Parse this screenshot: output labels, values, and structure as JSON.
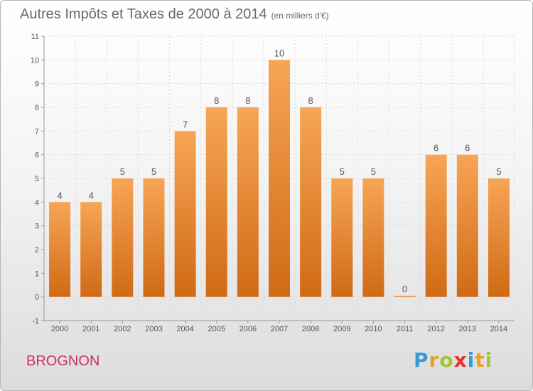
{
  "header": {
    "title": "Autres Impôts et Taxes de 2000 à 2014",
    "subtitle": "(en milliers d'€)"
  },
  "footer": {
    "commune": "BROGNON",
    "logo": {
      "letters": [
        "P",
        "r",
        "o",
        "x",
        "i",
        "t",
        "i"
      ],
      "colors": [
        "#3a9ad9",
        "#e8a22a",
        "#9fc53a",
        "#e8312f",
        "#3a9ad9",
        "#e8a22a",
        "#9fc53a"
      ]
    }
  },
  "chart_data": {
    "type": "bar",
    "categories": [
      "2000",
      "2001",
      "2002",
      "2003",
      "2004",
      "2005",
      "2006",
      "2007",
      "2008",
      "2009",
      "2010",
      "2011",
      "2012",
      "2013",
      "2014"
    ],
    "values": [
      4,
      4,
      5,
      5,
      7,
      8,
      8,
      10,
      8,
      5,
      5,
      0,
      6,
      6,
      5
    ],
    "data_labels": [
      "4",
      "4",
      "5",
      "5",
      "7",
      "8",
      "8",
      "10",
      "8",
      "5",
      "5",
      "0",
      "6",
      "6",
      "5"
    ],
    "yticks": [
      "-1",
      "0",
      "1",
      "2",
      "3",
      "4",
      "5",
      "6",
      "7",
      "8",
      "9",
      "10",
      "11"
    ],
    "ylim": [
      -1,
      11
    ],
    "grid": true,
    "bar_color_top": "#f7a556",
    "bar_color_bottom": "#d06a14"
  }
}
